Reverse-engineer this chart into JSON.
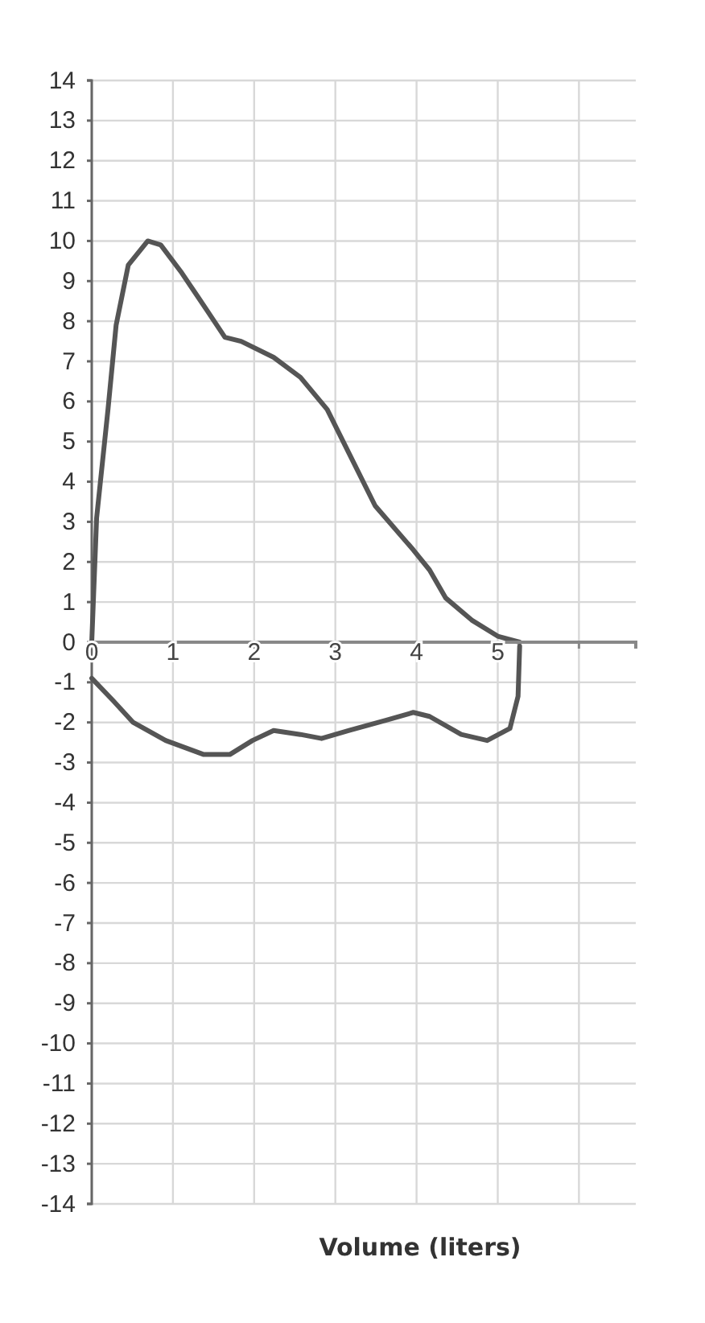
{
  "chart_data": {
    "type": "line",
    "xlabel": "Volume (liters)",
    "xlim": [
      0,
      6.7
    ],
    "ylim": [
      -14,
      14
    ],
    "xticks": [
      0,
      1,
      2,
      3,
      4,
      5,
      {
        "value": 6,
        "label": null
      }
    ],
    "yticks": [
      -14,
      -13,
      -12,
      -11,
      -10,
      -9,
      -8,
      -7,
      -6,
      -5,
      -4,
      -3,
      -2,
      -1,
      0,
      1,
      2,
      3,
      4,
      5,
      6,
      7,
      8,
      9,
      10,
      11,
      12,
      13,
      14
    ],
    "grid": true,
    "marker": "none",
    "line_style": "solid",
    "series": [
      {
        "color": "#555555",
        "x": [
          0,
          0.06,
          0.2,
          0.3,
          0.45,
          0.69,
          0.85,
          1.11,
          1.31,
          1.64,
          1.84,
          2.24,
          2.57,
          2.9,
          3.17,
          3.49,
          3.96,
          4.16,
          4.36,
          4.68,
          5.0,
          5.27
        ],
        "values": [
          0,
          3.1,
          5.8,
          7.9,
          9.4,
          10.0,
          9.9,
          9.2,
          8.6,
          7.6,
          7.5,
          7.1,
          6.6,
          5.8,
          4.7,
          3.4,
          2.3,
          1.8,
          1.1,
          0.55,
          0.15,
          0
        ]
      },
      {
        "color": "#555555",
        "x": [
          0,
          0.26,
          0.51,
          0.91,
          1.38,
          1.7,
          1.98,
          2.24,
          2.57,
          2.83,
          3.17,
          3.62,
          3.96,
          4.16,
          4.55,
          4.87,
          5.15,
          5.25,
          5.27
        ],
        "values": [
          -0.9,
          -1.45,
          -2.0,
          -2.45,
          -2.8,
          -2.8,
          -2.45,
          -2.2,
          -2.3,
          -2.4,
          -2.2,
          -1.95,
          -1.75,
          -1.85,
          -2.3,
          -2.45,
          -2.15,
          -1.35,
          -0.1
        ]
      }
    ]
  }
}
